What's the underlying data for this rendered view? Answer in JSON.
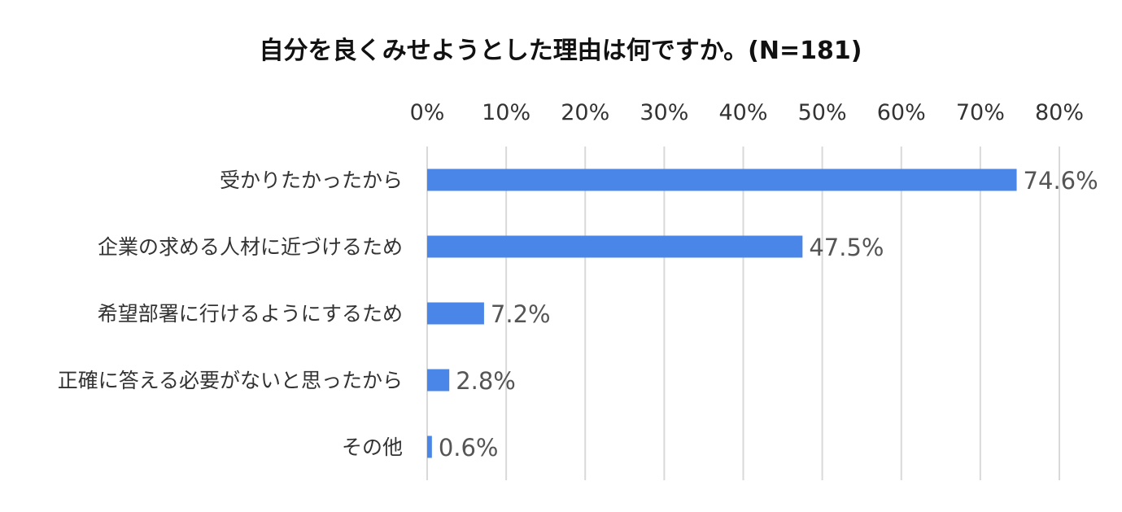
{
  "chart_data": {
    "type": "bar",
    "orientation": "horizontal",
    "title": "自分を良くみせようとした理由は何ですか。(N=181)",
    "categories": [
      "受かりたかったから",
      "企業の求める人材に近づけるため",
      "希望部署に行けるようにするため",
      "正確に答える必要がないと思ったから",
      "その他"
    ],
    "values": [
      74.6,
      47.5,
      7.2,
      2.8,
      0.6
    ],
    "data_labels": [
      "74.6%",
      "47.5%",
      "7.2%",
      "2.8%",
      "0.6%"
    ],
    "xlim": [
      0,
      80
    ],
    "x_ticks": [
      0,
      10,
      20,
      30,
      40,
      50,
      60,
      70,
      80
    ],
    "x_tick_labels": [
      "0%",
      "10%",
      "20%",
      "30%",
      "40%",
      "50%",
      "60%",
      "70%",
      "80%"
    ],
    "x_axis_position": "top",
    "grid": true,
    "legend": "none",
    "bar_color": "#4a86e8"
  }
}
